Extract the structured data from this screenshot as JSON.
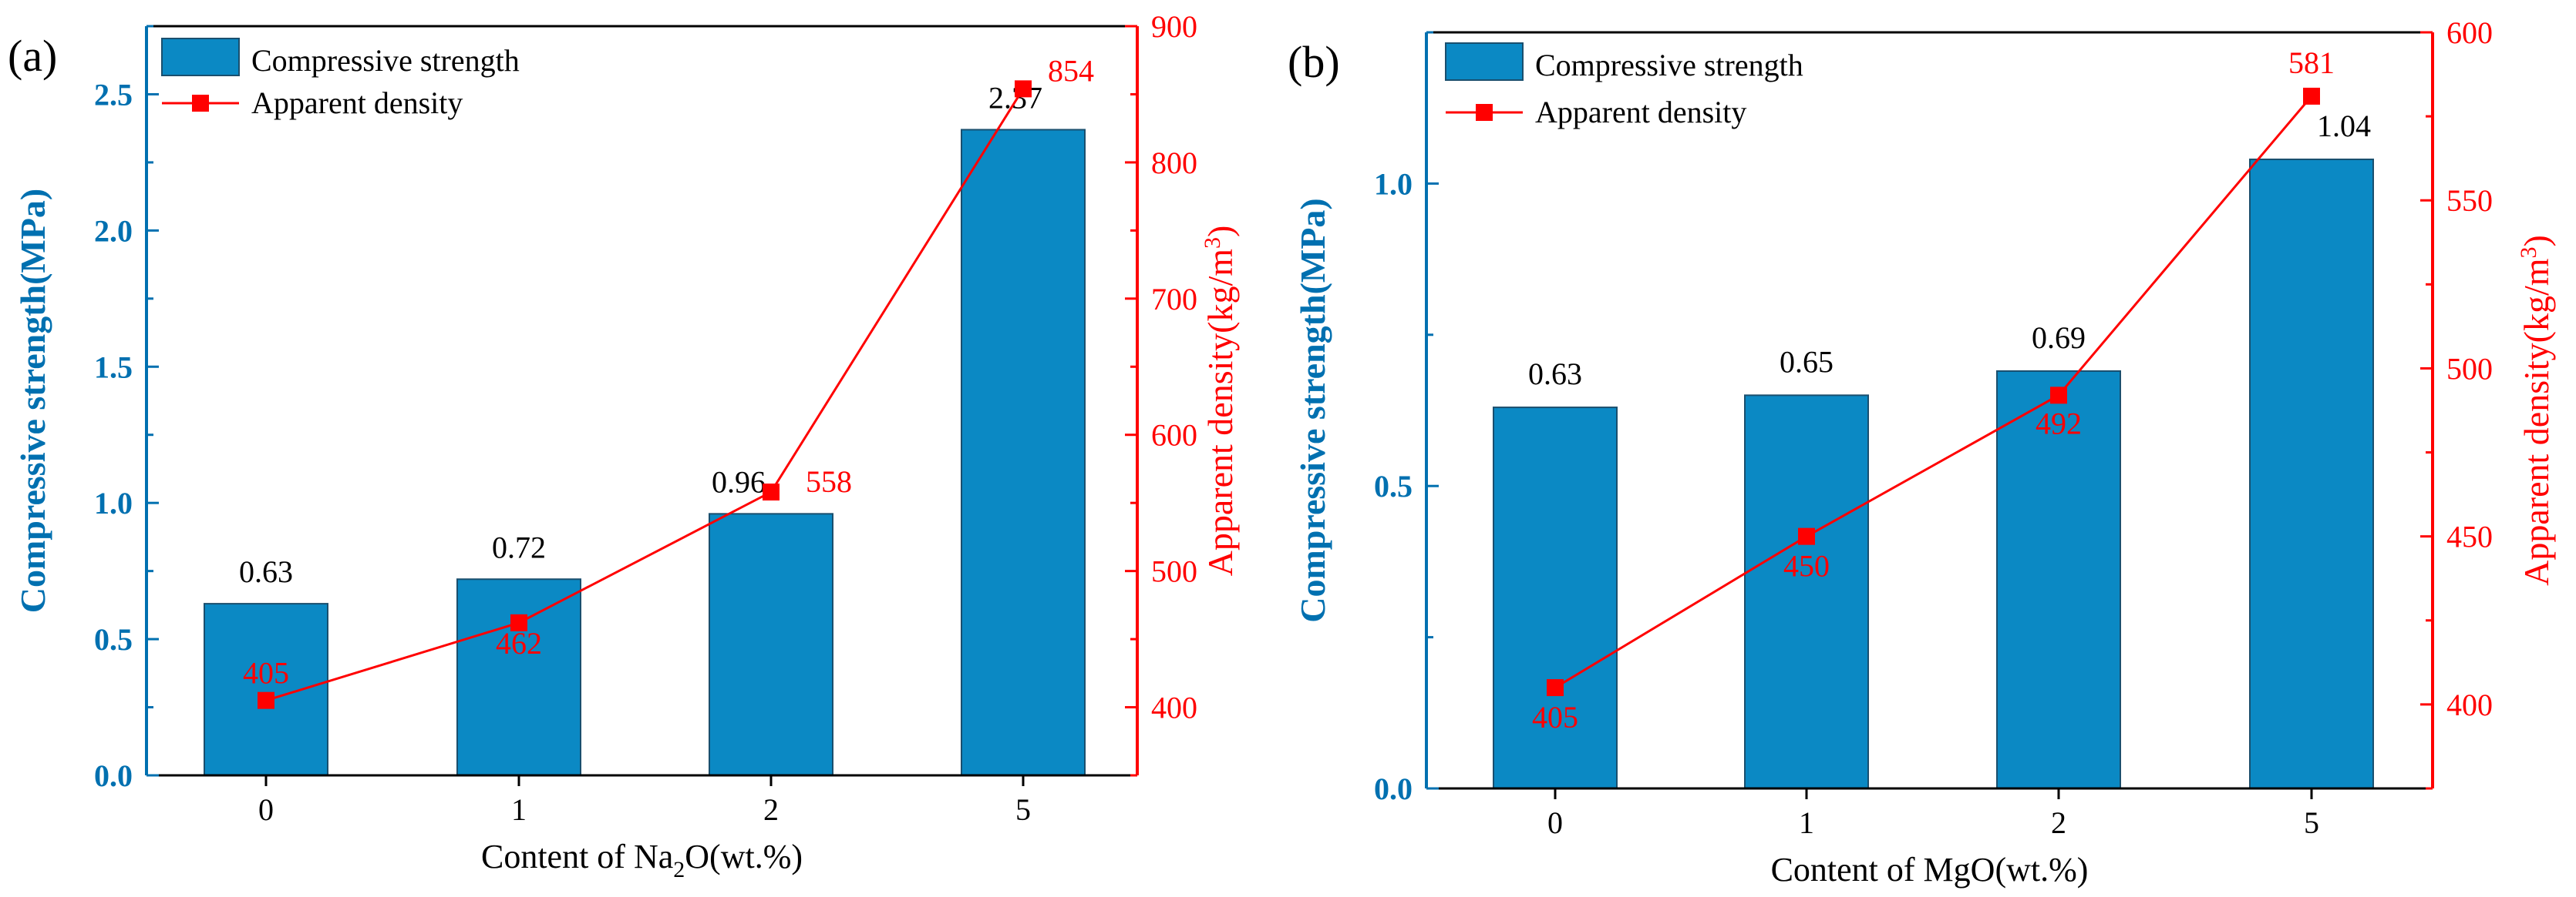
{
  "colors": {
    "bar": "#0b89c4",
    "bar_stroke": "#1a4f6e",
    "line": "#ff0000",
    "axis_left": "#0070b0",
    "axis_right": "#ff0000",
    "text": "#000000"
  },
  "chart_data": [
    {
      "type": "bar",
      "panel_label": "(a)",
      "xlabel_prefix": "Content of Na",
      "xlabel_sub": "2",
      "xlabel_suffix": "O(wt.%)",
      "ylabel": "Compressive strength(MPa)",
      "y2label_prefix": "Apparent density(kg/m",
      "y2label_sup": "3",
      "y2label_suffix": ")",
      "categories": [
        "0",
        "1",
        "2",
        "5"
      ],
      "ylim": [
        0,
        2.75
      ],
      "yticks": [
        "0.0",
        "0.5",
        "1.0",
        "1.5",
        "2.0",
        "2.5"
      ],
      "y2lim": [
        350,
        900
      ],
      "y2ticks": [
        "400",
        "500",
        "600",
        "700",
        "800",
        "900"
      ],
      "series": [
        {
          "name": "Compressive strength",
          "type": "bar",
          "values": [
            0.63,
            0.72,
            0.96,
            2.37
          ],
          "labels": [
            "0.63",
            "0.72",
            "0.96",
            "2.37"
          ]
        },
        {
          "name": "Apparent density",
          "type": "line",
          "values": [
            405,
            462,
            558,
            854
          ],
          "labels": [
            "405",
            "462",
            "558",
            "854"
          ]
        }
      ]
    },
    {
      "type": "bar",
      "panel_label": "(b)",
      "xlabel_prefix": "Content of MgO(wt.%)",
      "xlabel_sub": "",
      "xlabel_suffix": "",
      "ylabel": "Compressive strength(MPa)",
      "y2label_prefix": "Apparent density(kg/m",
      "y2label_sup": "3",
      "y2label_suffix": ")",
      "categories": [
        "0",
        "1",
        "2",
        "5"
      ],
      "ylim": [
        0,
        1.25
      ],
      "yticks": [
        "0.0",
        "0.5",
        "1.0"
      ],
      "y2lim": [
        375,
        600
      ],
      "y2ticks": [
        "400",
        "450",
        "500",
        "550",
        "600"
      ],
      "series": [
        {
          "name": "Compressive strength",
          "type": "bar",
          "values": [
            0.63,
            0.65,
            0.69,
            1.04
          ],
          "labels": [
            "0.63",
            "0.65",
            "0.69",
            "1.04"
          ]
        },
        {
          "name": "Apparent density",
          "type": "line",
          "values": [
            405,
            450,
            492,
            581
          ],
          "labels": [
            "405",
            "450",
            "492",
            "581"
          ]
        }
      ]
    }
  ]
}
